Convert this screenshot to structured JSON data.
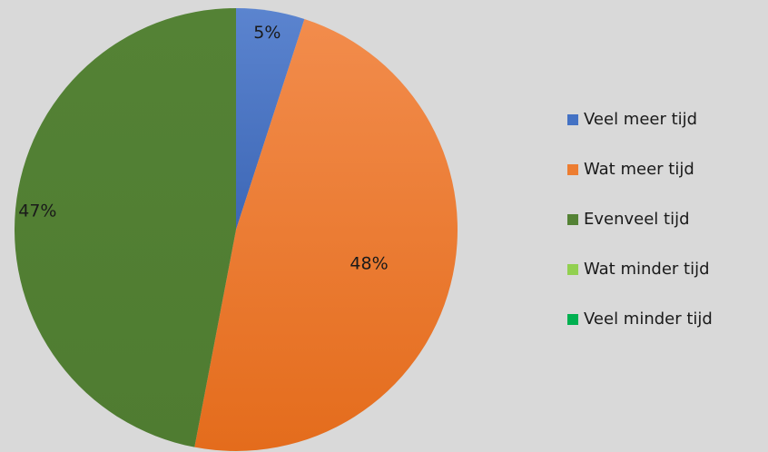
{
  "chart_data": {
    "type": "pie",
    "title": "",
    "categories": [
      "Veel meer tijd",
      "Wat meer tijd",
      "Evenveel tijd",
      "Wat minder tijd",
      "Veel minder tijd"
    ],
    "values": [
      5,
      48,
      47,
      0,
      0
    ],
    "value_labels": [
      "5%",
      "48%",
      "47%",
      "",
      ""
    ],
    "colors": [
      "#4472c4",
      "#ed7d31",
      "#548235",
      "#92d050",
      "#00b050"
    ],
    "start_angle_deg": 0,
    "direction": "clockwise",
    "legend_placement": "right"
  }
}
